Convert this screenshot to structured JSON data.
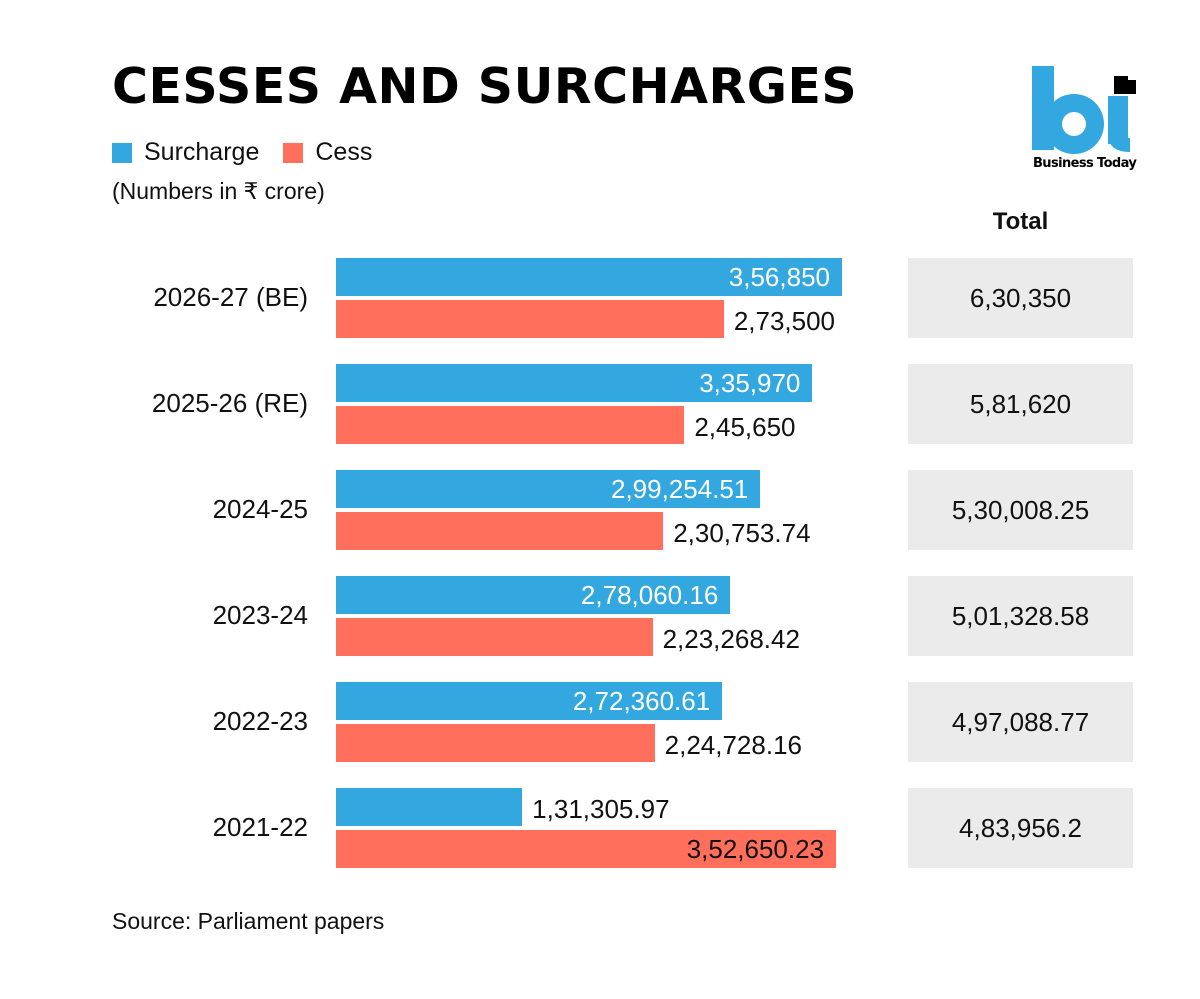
{
  "chart_data": {
    "type": "bar",
    "orientation": "horizontal",
    "title": "CESSES AND SURCHARGES",
    "subtitle": "(Numbers in ₹ crore)",
    "categories": [
      "2026-27 (BE)",
      "2025-26 (RE)",
      "2024-25",
      "2023-24",
      "2022-23",
      "2021-22"
    ],
    "series": [
      {
        "name": "Surcharge",
        "color": "#33a8e0",
        "values": [
          356850,
          335970,
          299254.51,
          278060.16,
          272360.61,
          131305.97
        ],
        "labels": [
          "3,56,850",
          "3,35,970",
          "2,99,254.51",
          "2,78,060.16",
          "2,72,360.61",
          "1,31,305.97"
        ],
        "label_inside": [
          true,
          true,
          true,
          true,
          true,
          false
        ]
      },
      {
        "name": "Cess",
        "color": "#ff6f5b",
        "values": [
          273500,
          245650,
          230753.74,
          223268.42,
          224728.16,
          352650.23
        ],
        "labels": [
          "2,73,500",
          "2,45,650",
          "2,30,753.74",
          "2,23,268.42",
          "2,24,728.16",
          "3,52,650.23"
        ],
        "label_inside": [
          false,
          false,
          false,
          false,
          false,
          true
        ]
      }
    ],
    "totals_header": "Total",
    "totals": [
      "6,30,350",
      "5,81,620",
      "5,30,008.25",
      "5,01,328.58",
      "4,97,088.77",
      "4,83,956.2"
    ],
    "xlabel": "",
    "ylabel": "",
    "xlim": [
      0,
      360000
    ],
    "grid": false,
    "legend": "top-left",
    "source": "Source: Parliament papers"
  },
  "legend": {
    "items": [
      {
        "label": "Surcharge",
        "color": "#33a8e0"
      },
      {
        "label": "Cess",
        "color": "#ff6f5b"
      }
    ]
  },
  "branding": {
    "logo_text": "Business Today",
    "logo_color": "#33a8e0"
  }
}
